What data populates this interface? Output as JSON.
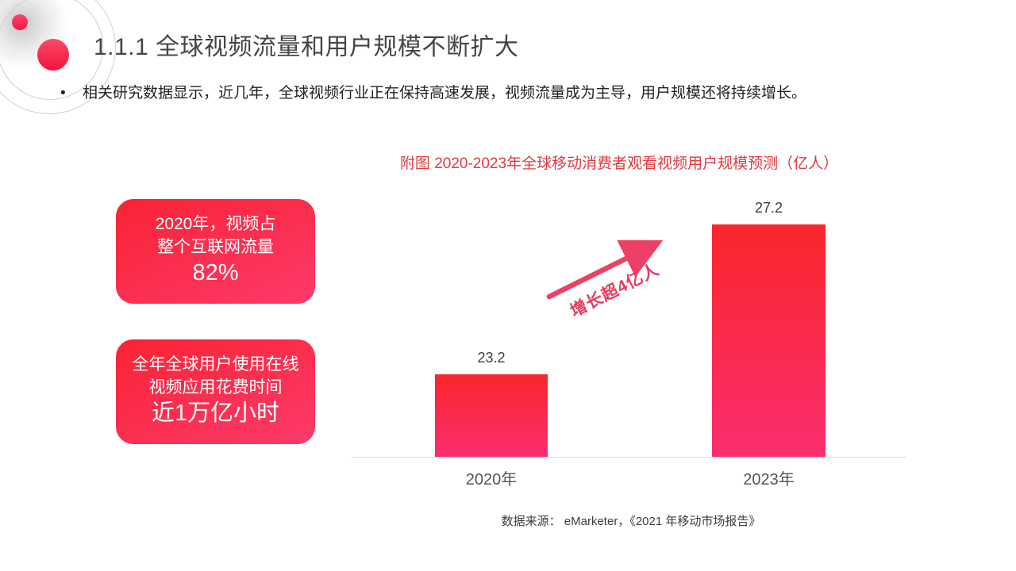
{
  "slide": {
    "title": "1.1.1  全球视频流量和用户规模不断扩大",
    "bullet_char": "•",
    "bullet_text": "相关研究数据显示，近几年，全球视频行业正在保持高速发展，视频流量成为主导，用户规模还将持续增长。",
    "source": "数据来源：  eMarketer，《2021 年移动市场报告》"
  },
  "highlight_boxes": [
    {
      "line1": "2020年，视频占",
      "line2": "整个互联网流量",
      "big": "82%"
    },
    {
      "line1": "全年全球用户使用在线",
      "line2": "视频应用花费时间",
      "big": "近1万亿小时"
    }
  ],
  "annotation": {
    "arrow_label": "增长超4亿人"
  },
  "colors": {
    "accent_red": "#f9262b",
    "accent_pink": "#fb2e6e",
    "chart_title_red": "#e03a41",
    "arrow_pink": "#ee3f66",
    "axis_gray": "#d9d9d9",
    "text_dark": "#454545"
  },
  "chart_data": {
    "type": "bar",
    "title": "附图 2020-2023年全球移动消费者观看视频用户规模预测（亿人）",
    "categories": [
      "2020年",
      "2023年"
    ],
    "values": [
      23.2,
      27.2
    ],
    "xlabel": "",
    "ylabel": "亿人",
    "ylim": [
      21,
      28.6
    ],
    "grid": false,
    "legend": "none",
    "bar_gradient": [
      "#f9262b",
      "#fb2e6e"
    ]
  }
}
